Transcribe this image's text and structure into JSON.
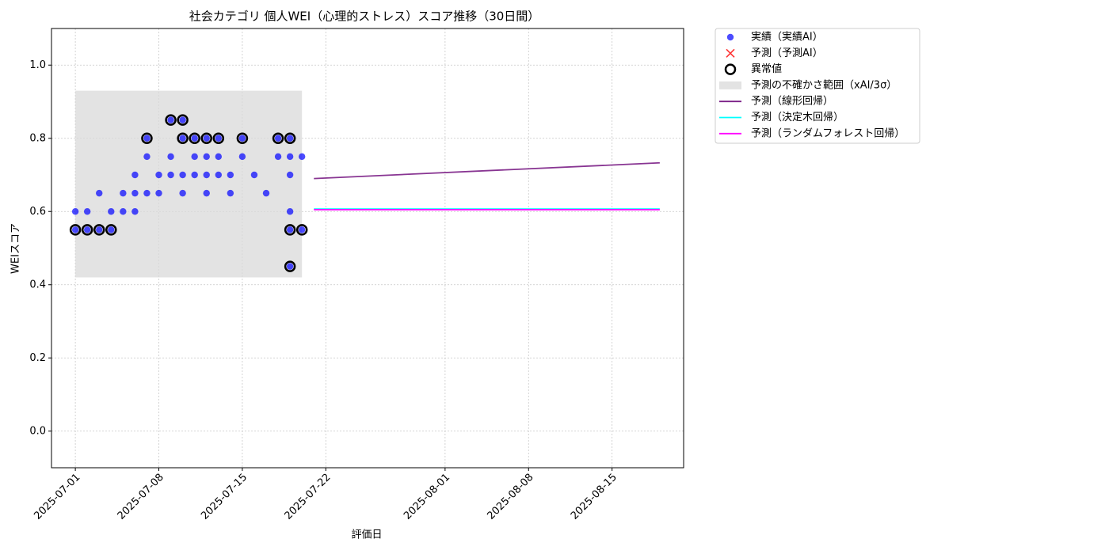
{
  "chart_data": {
    "type": "scatter",
    "title": "社会カテゴリ 個人WEI（心理的ストレス）スコア推移（30日間）",
    "x_label": "評価日",
    "y_label": "WEIスコア",
    "xlim": [
      "2025-06-29",
      "2025-08-21"
    ],
    "ylim": [
      -0.1,
      1.1
    ],
    "xticks": [
      "2025-07-01",
      "2025-07-08",
      "2025-07-15",
      "2025-07-22",
      "2025-08-01",
      "2025-08-08",
      "2025-08-15"
    ],
    "yticks": [
      {
        "value": 0,
        "label": "0.0"
      },
      0.2,
      0.4,
      0.6,
      0.8,
      {
        "value": 1,
        "label": "1.0"
      }
    ],
    "grid": true,
    "legend": "outside-right",
    "series": [
      {
        "name": "実績（実績AI）",
        "marker": "dot",
        "color": "#0000ff",
        "x": [
          "2025-07-01",
          "2025-07-01",
          "2025-07-02",
          "2025-07-02",
          "2025-07-03",
          "2025-07-03",
          "2025-07-04",
          "2025-07-04",
          "2025-07-05",
          "2025-07-05",
          "2025-07-06",
          "2025-07-06",
          "2025-07-06",
          "2025-07-07",
          "2025-07-07",
          "2025-07-07",
          "2025-07-08",
          "2025-07-08",
          "2025-07-09",
          "2025-07-09",
          "2025-07-09",
          "2025-07-10",
          "2025-07-10",
          "2025-07-10",
          "2025-07-10",
          "2025-07-11",
          "2025-07-11",
          "2025-07-11",
          "2025-07-12",
          "2025-07-12",
          "2025-07-12",
          "2025-07-12",
          "2025-07-13",
          "2025-07-13",
          "2025-07-13",
          "2025-07-14",
          "2025-07-14",
          "2025-07-15",
          "2025-07-15",
          "2025-07-16",
          "2025-07-17",
          "2025-07-18",
          "2025-07-18",
          "2025-07-19",
          "2025-07-19",
          "2025-07-19",
          "2025-07-19",
          "2025-07-19",
          "2025-07-19",
          "2025-07-20",
          "2025-07-20"
        ],
        "values": [
          0.6,
          0.55,
          0.6,
          0.55,
          0.65,
          0.55,
          0.6,
          0.55,
          0.65,
          0.6,
          0.7,
          0.65,
          0.6,
          0.8,
          0.75,
          0.65,
          0.7,
          0.65,
          0.85,
          0.75,
          0.7,
          0.8,
          0.85,
          0.7,
          0.65,
          0.8,
          0.75,
          0.7,
          0.8,
          0.75,
          0.7,
          0.65,
          0.8,
          0.75,
          0.7,
          0.7,
          0.65,
          0.8,
          0.75,
          0.7,
          0.65,
          0.8,
          0.75,
          0.8,
          0.75,
          0.7,
          0.6,
          0.55,
          0.45,
          0.75,
          0.55
        ]
      },
      {
        "name": "予測（予測AI）",
        "marker": "cross",
        "color": "#ff0000",
        "x": [],
        "values": []
      },
      {
        "name": "異常値",
        "marker": "ring",
        "color": "#000000",
        "x": [
          "2025-07-01",
          "2025-07-02",
          "2025-07-03",
          "2025-07-04",
          "2025-07-07",
          "2025-07-09",
          "2025-07-10",
          "2025-07-10",
          "2025-07-11",
          "2025-07-12",
          "2025-07-13",
          "2025-07-15",
          "2025-07-18",
          "2025-07-19",
          "2025-07-19",
          "2025-07-19",
          "2025-07-20"
        ],
        "values": [
          0.55,
          0.55,
          0.55,
          0.55,
          0.8,
          0.85,
          0.8,
          0.85,
          0.8,
          0.8,
          0.8,
          0.8,
          0.8,
          0.8,
          0.55,
          0.45,
          0.55
        ]
      },
      {
        "name": "予測の不確かさ範囲（xAI/3σ）",
        "marker": "band",
        "color": "#d9d9d9",
        "x": [
          "2025-07-01",
          "2025-07-20"
        ],
        "lower": [
          0.42,
          0.42
        ],
        "upper": [
          0.93,
          0.93
        ]
      },
      {
        "name": "予測（線形回帰）",
        "marker": "line",
        "color": "#7b1f86",
        "x": [
          "2025-07-21",
          "2025-08-19"
        ],
        "values": [
          0.69,
          0.733
        ]
      },
      {
        "name": "予測（決定木回帰）",
        "marker": "line",
        "color": "#00ffff",
        "x": [
          "2025-07-21",
          "2025-08-19"
        ],
        "values": [
          0.607,
          0.607
        ]
      },
      {
        "name": "予測（ランダムフォレスト回帰）",
        "marker": "line",
        "color": "#ff00ff",
        "x": [
          "2025-07-21",
          "2025-08-19"
        ],
        "values": [
          0.605,
          0.605
        ]
      }
    ]
  }
}
